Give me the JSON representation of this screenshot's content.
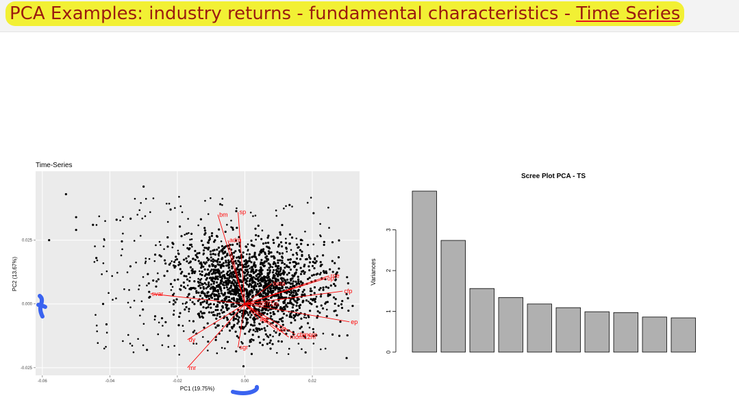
{
  "title": {
    "part1": "PCA Examples: industry returns - fundamental characteristics - ",
    "link": "Time Series"
  },
  "colors": {
    "highlight": "#f2f034",
    "title_text": "#9b1b10",
    "loading_red": "#ff0000",
    "annotation_blue": "#3a63f0"
  },
  "chart_data": [
    {
      "type": "scatter",
      "title": "Time-Series",
      "xlabel": "PC1 (19.75%)",
      "ylabel": "PC2 (13.67%)",
      "xticks": [
        "-0.06",
        "-0.04",
        "-0.02",
        "0.00",
        "0.02"
      ],
      "yticks": [
        "0.025",
        "0.000",
        "-0.025"
      ],
      "xlim": [
        -0.062,
        0.034
      ],
      "ylim": [
        -0.028,
        0.052
      ],
      "loadings": [
        {
          "name": "bm",
          "x": -0.008,
          "y": 0.035
        },
        {
          "name": "sp",
          "x": -0.002,
          "y": 0.036
        },
        {
          "name": "adm",
          "x": -0.005,
          "y": 0.025
        },
        {
          "name": "roe",
          "x": 0.025,
          "y": 0.011
        },
        {
          "name": "op",
          "x": 0.024,
          "y": 0.01
        },
        {
          "name": "cfp",
          "x": 0.029,
          "y": 0.005
        },
        {
          "name": "ep",
          "x": 0.031,
          "y": -0.007
        },
        {
          "name": "beta",
          "x": 0.008,
          "y": 0.008
        },
        {
          "name": "svar",
          "x": -0.028,
          "y": 0.004
        },
        {
          "name": "mom1m",
          "x": 0.003,
          "y": 0.0
        },
        {
          "name": "agr",
          "x": 0.004,
          "y": -0.006
        },
        {
          "name": "ivol",
          "x": 0.009,
          "y": -0.01
        },
        {
          "name": "mom12m",
          "x": 0.013,
          "y": -0.013
        },
        {
          "name": "chmom",
          "x": 0.015,
          "y": -0.012
        },
        {
          "name": "dy",
          "x": -0.017,
          "y": -0.014
        },
        {
          "name": "sgr",
          "x": -0.002,
          "y": -0.017
        },
        {
          "name": "mr",
          "x": -0.017,
          "y": -0.025
        }
      ],
      "grid": true
    },
    {
      "type": "bar",
      "title": "Scree Plot PCA - TS",
      "ylabel": "Variances",
      "yticks": [
        "0",
        "1",
        "2",
        "3"
      ],
      "ylim": [
        0,
        4
      ],
      "values": [
        3.95,
        2.74,
        1.56,
        1.34,
        1.18,
        1.09,
        0.99,
        0.97,
        0.86,
        0.84
      ]
    }
  ]
}
